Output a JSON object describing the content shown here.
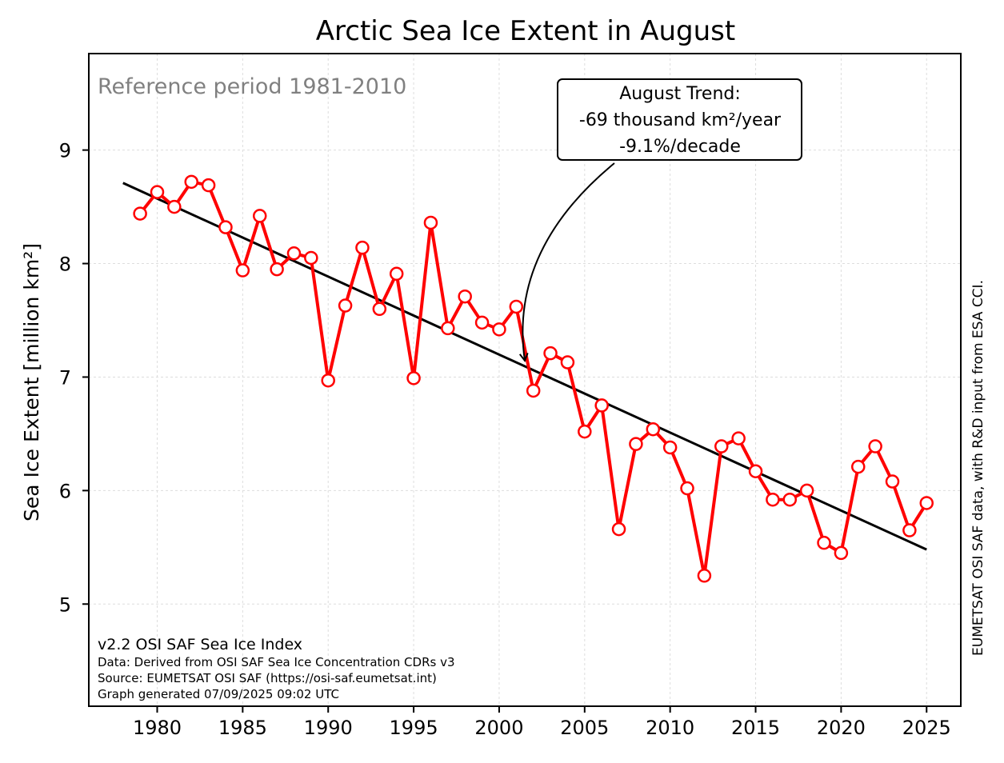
{
  "chart_data": {
    "type": "line",
    "title": "Arctic Sea Ice Extent in August",
    "ylabel": "Sea Ice Extent [million km²]",
    "xlabel": "",
    "xlim": [
      1976,
      2027
    ],
    "ylim": [
      4.1,
      9.85
    ],
    "x_ticks": [
      1980,
      1985,
      1990,
      1995,
      2000,
      2005,
      2010,
      2015,
      2020,
      2025
    ],
    "y_ticks": [
      5,
      6,
      7,
      8,
      9
    ],
    "grid": true,
    "series": [
      {
        "color": "#ff0000",
        "x": [
          1979,
          1980,
          1981,
          1982,
          1983,
          1984,
          1985,
          1986,
          1987,
          1988,
          1989,
          1990,
          1991,
          1992,
          1993,
          1994,
          1995,
          1996,
          1997,
          1998,
          1999,
          2000,
          2001,
          2002,
          2003,
          2004,
          2005,
          2006,
          2007,
          2008,
          2009,
          2010,
          2011,
          2012,
          2013,
          2014,
          2015,
          2016,
          2017,
          2018,
          2019,
          2020,
          2021,
          2022,
          2023,
          2024,
          2025
        ],
        "values": [
          8.44,
          8.63,
          8.5,
          8.72,
          8.69,
          8.32,
          7.94,
          8.42,
          7.95,
          8.09,
          8.05,
          6.97,
          7.63,
          8.14,
          7.6,
          7.91,
          6.99,
          8.36,
          7.43,
          7.71,
          7.48,
          7.42,
          7.62,
          6.88,
          7.21,
          7.13,
          6.52,
          6.75,
          5.66,
          6.41,
          6.54,
          6.38,
          6.02,
          5.25,
          6.39,
          6.46,
          6.17,
          5.92,
          5.92,
          6.0,
          5.54,
          5.45,
          6.21,
          6.39,
          6.08,
          5.65,
          5.89
        ]
      }
    ],
    "trend": {
      "color": "#000000",
      "x": [
        1978,
        2025
      ],
      "values": [
        8.71,
        5.48
      ],
      "annotation_lines": [
        "August Trend:",
        "-69 thousand km²/year",
        "-9.1%/decade"
      ],
      "annotation_anchor": {
        "x": 2001.5,
        "y": 7.13
      }
    },
    "annotations": {
      "reference": "Reference period 1981-2010",
      "footer_main": "v2.2 OSI SAF Sea Ice Index",
      "footer_lines": [
        "Data: Derived from OSI SAF Sea Ice Concentration CDRs v3",
        "Source: EUMETSAT OSI SAF (https://osi-saf.eumetsat.int)",
        "Graph generated 07/09/2025 09:02 UTC"
      ],
      "side_note": "EUMETSAT OSI SAF data, with R&D input from ESA CCI."
    }
  }
}
